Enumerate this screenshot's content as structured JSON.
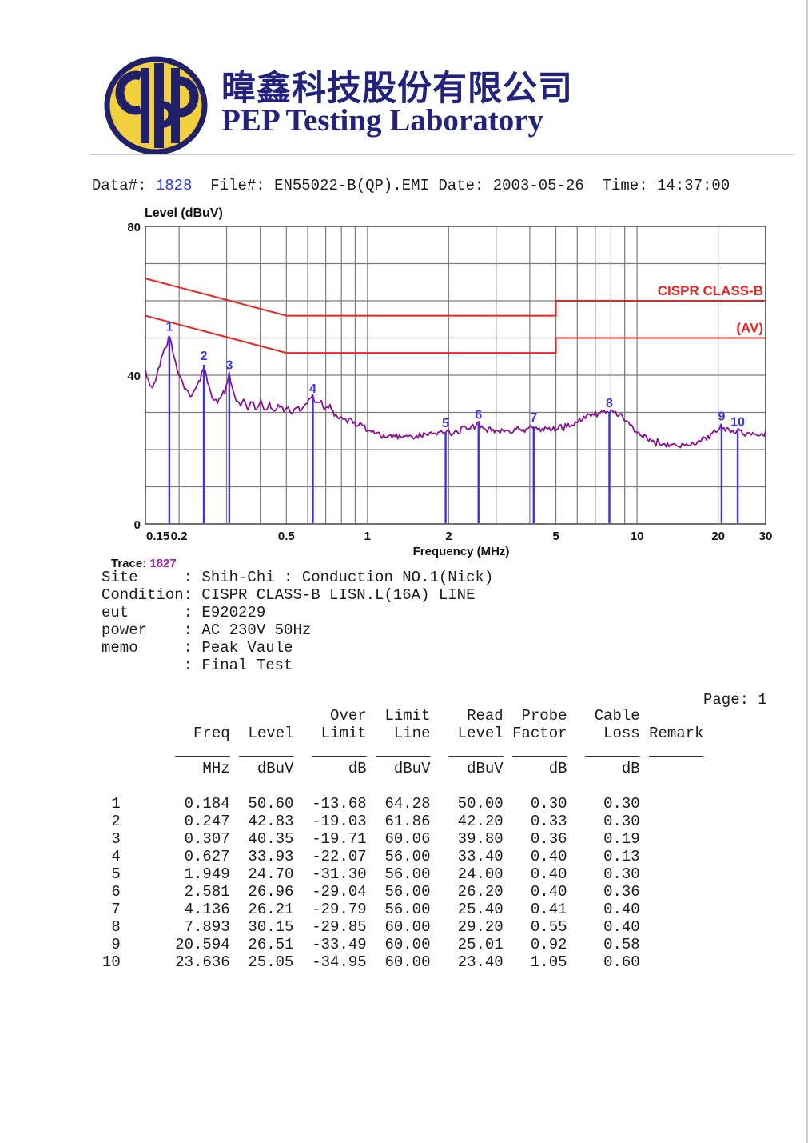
{
  "header": {
    "company_name_zh": "暐鑫科技股份有限公司",
    "company_name_en": "PEP Testing Laboratory",
    "logo_monogram": "PEP",
    "logo_ring_color": "#21216b",
    "logo_fill_color": "#f2cf3c"
  },
  "doc_info": {
    "data_label": "Data#:",
    "data_number": "1828",
    "file_label": "File#:",
    "file_name": "EN55022-B(QP).EMI",
    "date_label": "Date:",
    "date_value": "2003-05-26",
    "time_label": "Time:",
    "time_value": "14:37:00"
  },
  "chart_data": {
    "type": "line",
    "title": "Level (dBuV)",
    "xlabel": "Frequency (MHz)",
    "x_scale": "log",
    "xlim": [
      0.15,
      30
    ],
    "ylim": [
      0,
      80
    ],
    "y_tick_labels": [
      0,
      40,
      80
    ],
    "x_tick_labels": [
      0.15,
      0.2,
      0.5,
      1,
      2,
      5,
      10,
      20,
      30
    ],
    "grid_y": [
      10,
      20,
      30,
      40,
      50,
      60,
      70
    ],
    "grid_x": [
      0.2,
      0.3,
      0.4,
      0.5,
      0.6,
      0.7,
      0.8,
      0.9,
      1,
      2,
      3,
      4,
      5,
      6,
      7,
      8,
      9,
      10,
      20,
      30
    ],
    "grid_color": "#7c7c7c",
    "border_color": "#4f4f4f",
    "trace_color": "#8a1292",
    "marker_color": "#3b35e0",
    "limit_lines": [
      {
        "name": "quasi-peak-limit",
        "label": "CISPR CLASS-B",
        "color": "#ee2424",
        "points": [
          [
            0.15,
            66
          ],
          [
            0.5,
            56
          ],
          [
            5,
            56
          ],
          [
            5,
            60
          ],
          [
            30,
            60
          ]
        ]
      },
      {
        "name": "average-limit",
        "label": "(AV)",
        "color": "#ee2424",
        "points": [
          [
            0.15,
            56
          ],
          [
            0.5,
            46
          ],
          [
            5,
            46
          ],
          [
            5,
            50
          ],
          [
            30,
            50
          ]
        ]
      }
    ],
    "markers": [
      [
        1,
        0.184,
        50.6
      ],
      [
        2,
        0.247,
        42.83
      ],
      [
        3,
        0.307,
        40.35
      ],
      [
        4,
        0.627,
        33.93
      ],
      [
        5,
        1.949,
        24.7
      ],
      [
        6,
        2.581,
        26.96
      ],
      [
        7,
        4.136,
        26.21
      ],
      [
        8,
        7.893,
        30.15
      ],
      [
        9,
        20.594,
        26.51
      ],
      [
        10,
        23.636,
        25.05
      ]
    ],
    "trace_anchors": [
      [
        0.15,
        41.0
      ],
      [
        0.155,
        38.0
      ],
      [
        0.16,
        36.5
      ],
      [
        0.165,
        39.5
      ],
      [
        0.17,
        43.0
      ],
      [
        0.177,
        47.0
      ],
      [
        0.184,
        50.6
      ],
      [
        0.191,
        46.0
      ],
      [
        0.197,
        42.0
      ],
      [
        0.204,
        38.5
      ],
      [
        0.212,
        36.0
      ],
      [
        0.22,
        34.5
      ],
      [
        0.228,
        35.5
      ],
      [
        0.238,
        38.5
      ],
      [
        0.247,
        42.8
      ],
      [
        0.256,
        37.5
      ],
      [
        0.265,
        34.0
      ],
      [
        0.274,
        32.5
      ],
      [
        0.284,
        33.5
      ],
      [
        0.295,
        35.5
      ],
      [
        0.307,
        40.3
      ],
      [
        0.316,
        35.5
      ],
      [
        0.326,
        33.0
      ],
      [
        0.337,
        31.5
      ],
      [
        0.348,
        33.5
      ],
      [
        0.36,
        31.0
      ],
      [
        0.373,
        33.5
      ],
      [
        0.387,
        30.5
      ],
      [
        0.401,
        33.0
      ],
      [
        0.416,
        30.5
      ],
      [
        0.432,
        32.5
      ],
      [
        0.449,
        30.0
      ],
      [
        0.467,
        32.0
      ],
      [
        0.486,
        30.0
      ],
      [
        0.506,
        32.0
      ],
      [
        0.527,
        30.0
      ],
      [
        0.549,
        31.5
      ],
      [
        0.572,
        30.5
      ],
      [
        0.596,
        32.5
      ],
      [
        0.627,
        33.9
      ],
      [
        0.648,
        32.0
      ],
      [
        0.671,
        33.0
      ],
      [
        0.695,
        31.0
      ],
      [
        0.72,
        32.0
      ],
      [
        0.747,
        29.5
      ],
      [
        0.775,
        28.0
      ],
      [
        0.805,
        29.0
      ],
      [
        0.836,
        27.0
      ],
      [
        0.869,
        28.0
      ],
      [
        0.903,
        26.5
      ],
      [
        0.939,
        27.0
      ],
      [
        0.977,
        25.5
      ],
      [
        1.03,
        24.8
      ],
      [
        1.1,
        24.0
      ],
      [
        1.18,
        23.6
      ],
      [
        1.27,
        23.4
      ],
      [
        1.37,
        23.8
      ],
      [
        1.47,
        23.4
      ],
      [
        1.58,
        23.8
      ],
      [
        1.7,
        24.0
      ],
      [
        1.83,
        24.3
      ],
      [
        1.949,
        24.7
      ],
      [
        2.05,
        24.2
      ],
      [
        2.15,
        25.0
      ],
      [
        2.26,
        25.6
      ],
      [
        2.38,
        26.2
      ],
      [
        2.5,
        26.0
      ],
      [
        2.581,
        27.0
      ],
      [
        2.66,
        25.8
      ],
      [
        2.78,
        25.2
      ],
      [
        2.92,
        25.6
      ],
      [
        3.07,
        25.0
      ],
      [
        3.22,
        25.5
      ],
      [
        3.39,
        25.0
      ],
      [
        3.56,
        25.4
      ],
      [
        3.74,
        25.0
      ],
      [
        3.93,
        25.6
      ],
      [
        4.136,
        26.2
      ],
      [
        4.35,
        25.4
      ],
      [
        4.57,
        25.8
      ],
      [
        4.8,
        25.3
      ],
      [
        5.05,
        25.6
      ],
      [
        5.3,
        26.0
      ],
      [
        5.57,
        26.5
      ],
      [
        5.86,
        27.2
      ],
      [
        6.16,
        27.9
      ],
      [
        6.47,
        28.6
      ],
      [
        6.8,
        29.2
      ],
      [
        7.15,
        29.7
      ],
      [
        7.51,
        30.0
      ],
      [
        7.893,
        30.2
      ],
      [
        8.3,
        29.8
      ],
      [
        8.72,
        29.0
      ],
      [
        9.17,
        27.5
      ],
      [
        9.64,
        25.8
      ],
      [
        10.1,
        24.3
      ],
      [
        10.6,
        23.2
      ],
      [
        11.2,
        22.4
      ],
      [
        11.8,
        21.9
      ],
      [
        12.4,
        21.6
      ],
      [
        13.0,
        21.3
      ],
      [
        13.7,
        21.1
      ],
      [
        14.4,
        21.0
      ],
      [
        15.1,
        21.2
      ],
      [
        15.9,
        21.6
      ],
      [
        16.7,
        22.2
      ],
      [
        17.6,
        23.0
      ],
      [
        18.5,
        23.8
      ],
      [
        19.4,
        24.8
      ],
      [
        20.0,
        25.6
      ],
      [
        20.594,
        26.5
      ],
      [
        21.2,
        25.6
      ],
      [
        21.9,
        25.0
      ],
      [
        22.7,
        24.7
      ],
      [
        23.3,
        24.9
      ],
      [
        23.636,
        25.0
      ],
      [
        24.4,
        24.2
      ],
      [
        25.3,
        24.0
      ],
      [
        26.3,
        24.3
      ],
      [
        27.3,
        24.1
      ],
      [
        28.4,
        24.4
      ],
      [
        29.2,
        24.2
      ],
      [
        30.0,
        24.5
      ]
    ]
  },
  "trace_info": {
    "label": "Trace:",
    "value": "1827"
  },
  "site_info": {
    "lines": [
      {
        "label": "Site",
        "value": "Shih-Chi : Conduction NO.1(Nick)"
      },
      {
        "label": "Condition",
        "value": "CISPR CLASS-B LISN.L(16A) LINE"
      },
      {
        "label": "eut",
        "value": "E920229"
      },
      {
        "label": "power",
        "value": "AC 230V 50Hz"
      },
      {
        "label": "memo",
        "value": "Peak Vaule"
      },
      {
        "label": "",
        "value": "Final Test"
      }
    ]
  },
  "page_indicator": "Page: 1",
  "table": {
    "col_top": [
      "",
      "",
      "",
      "Over",
      "Limit",
      "Read",
      "Probe",
      "Cable"
    ],
    "col_bottom": [
      "",
      "Freq",
      "Level",
      "Limit",
      "Line",
      "Level",
      "Factor",
      "Loss"
    ],
    "remark_header": "Remark",
    "units": [
      "",
      "MHz",
      "dBuV",
      "dB",
      "dBuV",
      "dBuV",
      "dB",
      "dB"
    ],
    "rows": [
      [
        "1",
        "0.184",
        "50.60",
        "-13.68",
        "64.28",
        "50.00",
        "0.30",
        "0.30",
        ""
      ],
      [
        "2",
        "0.247",
        "42.83",
        "-19.03",
        "61.86",
        "42.20",
        "0.33",
        "0.30",
        ""
      ],
      [
        "3",
        "0.307",
        "40.35",
        "-19.71",
        "60.06",
        "39.80",
        "0.36",
        "0.19",
        ""
      ],
      [
        "4",
        "0.627",
        "33.93",
        "-22.07",
        "56.00",
        "33.40",
        "0.40",
        "0.13",
        ""
      ],
      [
        "5",
        "1.949",
        "24.70",
        "-31.30",
        "56.00",
        "24.00",
        "0.40",
        "0.30",
        ""
      ],
      [
        "6",
        "2.581",
        "26.96",
        "-29.04",
        "56.00",
        "26.20",
        "0.40",
        "0.36",
        ""
      ],
      [
        "7",
        "4.136",
        "26.21",
        "-29.79",
        "56.00",
        "25.40",
        "0.41",
        "0.40",
        ""
      ],
      [
        "8",
        "7.893",
        "30.15",
        "-29.85",
        "60.00",
        "29.20",
        "0.55",
        "0.40",
        ""
      ],
      [
        "9",
        "20.594",
        "26.51",
        "-33.49",
        "60.00",
        "25.01",
        "0.92",
        "0.58",
        ""
      ],
      [
        "10",
        "23.636",
        "25.05",
        "-34.95",
        "60.00",
        "23.40",
        "1.05",
        "0.60",
        ""
      ]
    ]
  }
}
